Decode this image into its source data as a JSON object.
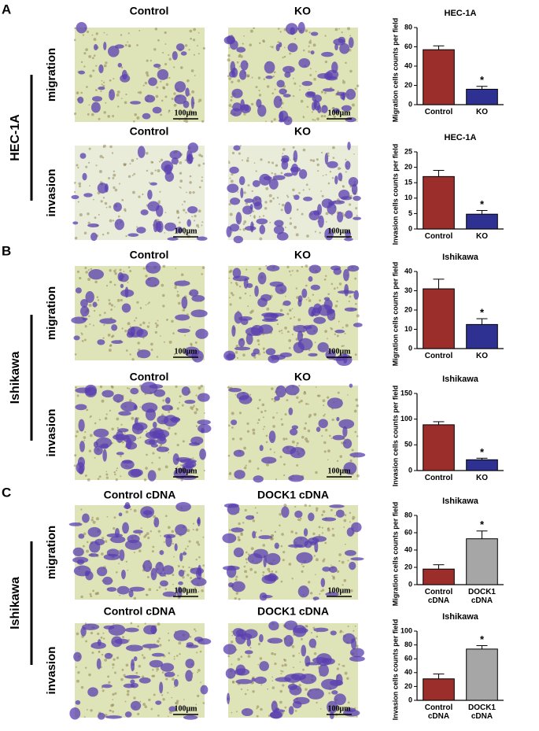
{
  "panels": [
    {
      "label": "A",
      "cell_line": "HEC-1A",
      "rows": [
        {
          "assay": "migration",
          "images": [
            {
              "title": "Control",
              "scale": "100μm"
            },
            {
              "title": "KO",
              "scale": "100μm"
            }
          ]
        },
        {
          "assay": "invasion",
          "images": [
            {
              "title": "Control",
              "scale": "100μm"
            },
            {
              "title": "KO",
              "scale": "100μm"
            }
          ]
        }
      ]
    },
    {
      "label": "B",
      "cell_line": "Ishikawa",
      "rows": [
        {
          "assay": "migration",
          "images": [
            {
              "title": "Control",
              "scale": "100μm"
            },
            {
              "title": "KO",
              "scale": "100μm"
            }
          ]
        },
        {
          "assay": "invasion",
          "images": [
            {
              "title": "Control",
              "scale": "100μm"
            },
            {
              "title": "KO",
              "scale": "100μm"
            }
          ]
        }
      ]
    },
    {
      "label": "C",
      "cell_line": "Ishikawa",
      "rows": [
        {
          "assay": "migration",
          "images": [
            {
              "title": "Control cDNA",
              "scale": "100μm"
            },
            {
              "title": "DOCK1 cDNA",
              "scale": "100μm"
            }
          ]
        },
        {
          "assay": "invasion",
          "images": [
            {
              "title": "Control cDNA",
              "scale": "100μm"
            },
            {
              "title": "DOCK1 cDNA",
              "scale": "100μm"
            }
          ]
        }
      ]
    }
  ],
  "chart_data": [
    {
      "type": "bar",
      "title": "HEC-1A",
      "ylabel": "Migration cells counts per field",
      "categories": [
        "Control",
        "KO"
      ],
      "values": [
        57,
        16
      ],
      "errors": [
        4,
        3
      ],
      "colors": [
        "#9b2d2a",
        "#2e3192"
      ],
      "significance": [
        null,
        "*"
      ],
      "ylim": [
        0,
        80
      ],
      "yticks": [
        0,
        20,
        40,
        60,
        80
      ]
    },
    {
      "type": "bar",
      "title": "HEC-1A",
      "ylabel": "Invasion cells counts per field",
      "categories": [
        "Control",
        "KO"
      ],
      "values": [
        17,
        4.8
      ],
      "errors": [
        2,
        1.2
      ],
      "colors": [
        "#9b2d2a",
        "#2e3192"
      ],
      "significance": [
        null,
        "*"
      ],
      "ylim": [
        0,
        25
      ],
      "yticks": [
        0,
        5,
        10,
        15,
        20,
        25
      ]
    },
    {
      "type": "bar",
      "title": "Ishikawa",
      "ylabel": "Migration cells counts per field",
      "categories": [
        "Control",
        "KO"
      ],
      "values": [
        31,
        12.5
      ],
      "errors": [
        5,
        3
      ],
      "colors": [
        "#9b2d2a",
        "#2e3192"
      ],
      "significance": [
        null,
        "*"
      ],
      "ylim": [
        0,
        40
      ],
      "yticks": [
        0,
        10,
        20,
        30,
        40
      ]
    },
    {
      "type": "bar",
      "title": "Ishikawa",
      "ylabel": "Invasion cells counts per field",
      "categories": [
        "Control",
        "KO"
      ],
      "values": [
        89,
        21
      ],
      "errors": [
        6,
        3
      ],
      "colors": [
        "#9b2d2a",
        "#2e3192"
      ],
      "significance": [
        null,
        "*"
      ],
      "ylim": [
        0,
        150
      ],
      "yticks": [
        0,
        50,
        100,
        150
      ]
    },
    {
      "type": "bar",
      "title": "Ishikawa",
      "ylabel": "Migration cells counts per field",
      "categories": [
        "Control cDNA",
        "DOCK1 cDNA"
      ],
      "values": [
        18,
        53
      ],
      "errors": [
        5,
        9
      ],
      "colors": [
        "#9b2d2a",
        "#a6a6a6"
      ],
      "significance": [
        null,
        "*"
      ],
      "ylim": [
        0,
        80
      ],
      "yticks": [
        0,
        20,
        40,
        60,
        80
      ]
    },
    {
      "type": "bar",
      "title": "Ishikawa",
      "ylabel": "Invasion cells counts per field",
      "categories": [
        "Control cDNA",
        "DOCK1 cDNA"
      ],
      "values": [
        31,
        74
      ],
      "errors": [
        7,
        5
      ],
      "colors": [
        "#9b2d2a",
        "#a6a6a6"
      ],
      "significance": [
        null,
        "*"
      ],
      "ylim": [
        0,
        100
      ],
      "yticks": [
        0,
        20,
        40,
        60,
        80,
        100
      ]
    }
  ]
}
